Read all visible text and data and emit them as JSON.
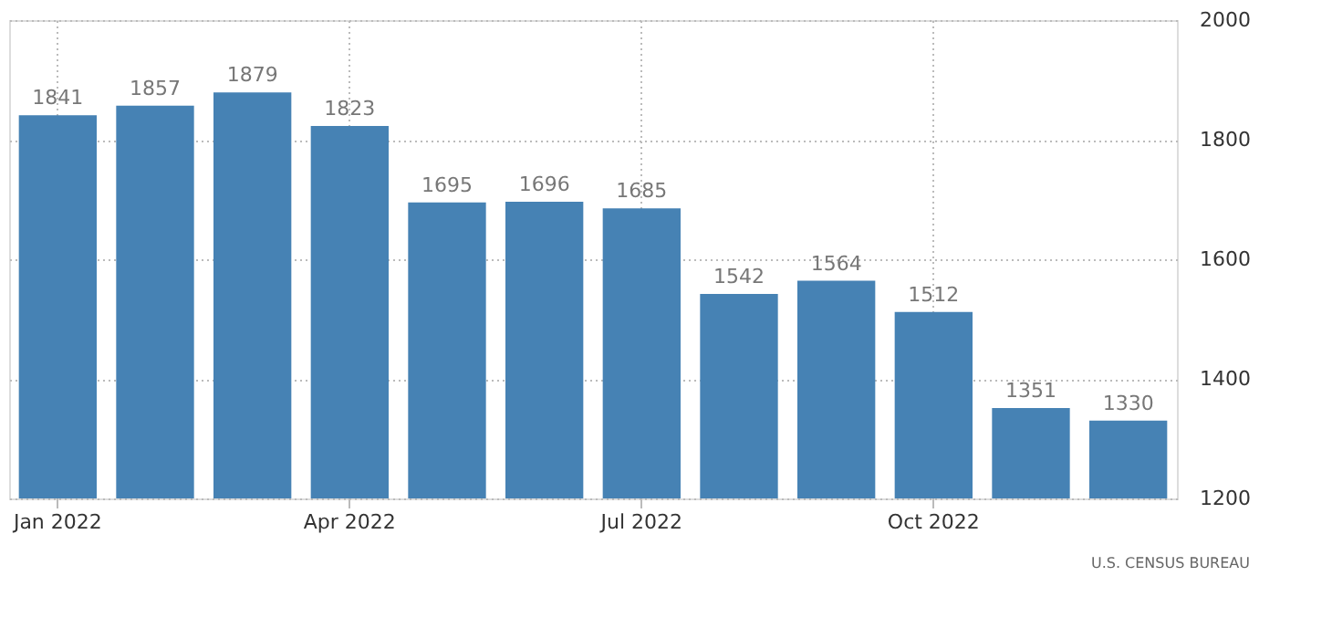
{
  "chart_data": {
    "type": "bar",
    "categories": [
      "Jan 2022",
      null,
      null,
      "Apr 2022",
      null,
      null,
      "Jul 2022",
      null,
      null,
      "Oct 2022",
      null,
      null
    ],
    "values": [
      1841,
      1857,
      1879,
      1823,
      1695,
      1696,
      1685,
      1542,
      1564,
      1512,
      1351,
      1330
    ],
    "color": "#4682b4",
    "ylim": [
      1200,
      2000
    ],
    "yticks": [
      1200,
      1400,
      1600,
      1800,
      2000
    ],
    "grid": true,
    "data_labels": true,
    "annotations": [
      "U.S. CENSUS BUREAU"
    ]
  }
}
